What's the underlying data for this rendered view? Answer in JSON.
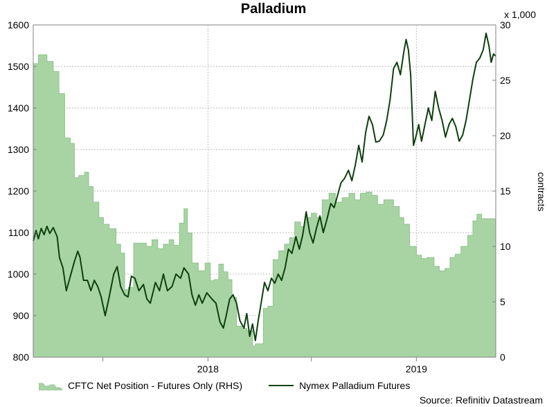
{
  "chart_data": {
    "type": "line",
    "title": "Palladium",
    "ylabel_right": "contracts",
    "right_multiplier": "x 1,000",
    "ylim_left": [
      800,
      1600
    ],
    "ylim_right": [
      0,
      30
    ],
    "yticks_left": [
      800,
      900,
      1000,
      1100,
      1200,
      1300,
      1400,
      1500,
      1600
    ],
    "yticks_right": [
      0,
      5,
      10,
      15,
      20,
      25,
      30
    ],
    "x_range": [
      "2017-03-01",
      "2019-05-20"
    ],
    "x_tick_labels": [
      {
        "date": "2018-01-01",
        "label": "2018"
      },
      {
        "date": "2019-01-01",
        "label": "2019"
      }
    ],
    "x_minor_ticks": [
      "2017-07-01",
      "2018-07-01"
    ],
    "grid": true,
    "legend_position": "bottom",
    "colors": {
      "area_fill": "#a8d4a4",
      "area_edge": "#8ec28a",
      "line": "#0c3f0c",
      "grid": "#bdbdbd"
    },
    "series": [
      {
        "name": "CFTC Net Position - Futures Only (RHS)",
        "type": "area",
        "axis": "right",
        "points": [
          [
            "2017-03-01",
            26.5
          ],
          [
            "2017-03-10",
            27.3
          ],
          [
            "2017-03-20",
            27.3
          ],
          [
            "2017-03-25",
            26.7
          ],
          [
            "2017-04-05",
            25.8
          ],
          [
            "2017-04-15",
            23.8
          ],
          [
            "2017-04-25",
            19.8
          ],
          [
            "2017-05-05",
            19.3
          ],
          [
            "2017-05-12",
            16.2
          ],
          [
            "2017-05-20",
            16.4
          ],
          [
            "2017-05-30",
            16.7
          ],
          [
            "2017-06-06",
            15.4
          ],
          [
            "2017-06-14",
            14.0
          ],
          [
            "2017-06-24",
            12.6
          ],
          [
            "2017-07-02",
            12.0
          ],
          [
            "2017-07-12",
            11.6
          ],
          [
            "2017-07-24",
            10.2
          ],
          [
            "2017-08-01",
            9.4
          ],
          [
            "2017-08-08",
            6.1
          ],
          [
            "2017-08-15",
            6.3
          ],
          [
            "2017-08-24",
            10.3
          ],
          [
            "2017-09-05",
            10.3
          ],
          [
            "2017-09-15",
            10.0
          ],
          [
            "2017-09-25",
            10.6
          ],
          [
            "2017-10-05",
            9.8
          ],
          [
            "2017-10-15",
            10.2
          ],
          [
            "2017-10-25",
            10.6
          ],
          [
            "2017-11-02",
            10.1
          ],
          [
            "2017-11-12",
            12.1
          ],
          [
            "2017-11-20",
            13.4
          ],
          [
            "2017-11-26",
            11.2
          ],
          [
            "2017-12-04",
            8.5
          ],
          [
            "2017-12-15",
            7.8
          ],
          [
            "2017-12-27",
            8.5
          ],
          [
            "2018-01-05",
            6.9
          ],
          [
            "2018-01-12",
            7.0
          ],
          [
            "2018-01-20",
            8.4
          ],
          [
            "2018-01-28",
            7.7
          ],
          [
            "2018-02-05",
            7.0
          ],
          [
            "2018-02-12",
            5.4
          ],
          [
            "2018-02-20",
            2.8
          ],
          [
            "2018-03-01",
            2.6
          ],
          [
            "2018-03-10",
            2.4
          ],
          [
            "2018-03-20",
            1.0
          ],
          [
            "2018-03-25",
            1.2
          ],
          [
            "2018-04-01",
            1.2
          ],
          [
            "2018-04-08",
            4.4
          ],
          [
            "2018-04-16",
            4.6
          ],
          [
            "2018-04-25",
            8.8
          ],
          [
            "2018-05-05",
            9.6
          ],
          [
            "2018-05-15",
            10.2
          ],
          [
            "2018-05-24",
            10.8
          ],
          [
            "2018-06-02",
            12.2
          ],
          [
            "2018-06-12",
            11.8
          ],
          [
            "2018-06-20",
            12.6
          ],
          [
            "2018-07-01",
            13.0
          ],
          [
            "2018-07-10",
            12.6
          ],
          [
            "2018-07-20",
            14.2
          ],
          [
            "2018-08-01",
            14.8
          ],
          [
            "2018-08-12",
            14.0
          ],
          [
            "2018-08-24",
            14.4
          ],
          [
            "2018-09-05",
            14.8
          ],
          [
            "2018-09-15",
            14.2
          ],
          [
            "2018-09-25",
            14.8
          ],
          [
            "2018-10-05",
            14.9
          ],
          [
            "2018-10-15",
            14.6
          ],
          [
            "2018-10-25",
            13.8
          ],
          [
            "2018-11-05",
            14.2
          ],
          [
            "2018-11-15",
            14.2
          ],
          [
            "2018-11-22",
            13.6
          ],
          [
            "2018-12-02",
            12.6
          ],
          [
            "2018-12-10",
            12.0
          ],
          [
            "2018-12-20",
            10.0
          ],
          [
            "2019-01-01",
            9.2
          ],
          [
            "2019-01-10",
            8.9
          ],
          [
            "2019-01-20",
            9.0
          ],
          [
            "2019-02-01",
            8.2
          ],
          [
            "2019-02-10",
            7.8
          ],
          [
            "2019-02-20",
            8.0
          ],
          [
            "2019-03-01",
            9.0
          ],
          [
            "2019-03-10",
            9.3
          ],
          [
            "2019-03-20",
            10.0
          ],
          [
            "2019-04-01",
            11.0
          ],
          [
            "2019-04-10",
            12.3
          ],
          [
            "2019-04-17",
            12.9
          ],
          [
            "2019-04-25",
            12.5
          ],
          [
            "2019-05-10",
            12.5
          ],
          [
            "2019-05-20",
            12.3
          ]
        ]
      },
      {
        "name": "Nymex Palladium Futures",
        "type": "line",
        "axis": "left",
        "points": [
          [
            "2017-03-01",
            1080
          ],
          [
            "2017-03-06",
            1105
          ],
          [
            "2017-03-10",
            1085
          ],
          [
            "2017-03-15",
            1110
          ],
          [
            "2017-03-20",
            1095
          ],
          [
            "2017-03-25",
            1115
          ],
          [
            "2017-03-30",
            1098
          ],
          [
            "2017-04-05",
            1112
          ],
          [
            "2017-04-12",
            1090
          ],
          [
            "2017-04-16",
            1040
          ],
          [
            "2017-04-22",
            1015
          ],
          [
            "2017-04-28",
            960
          ],
          [
            "2017-05-06",
            1000
          ],
          [
            "2017-05-12",
            1030
          ],
          [
            "2017-05-18",
            1055
          ],
          [
            "2017-05-22",
            1040
          ],
          [
            "2017-05-28",
            985
          ],
          [
            "2017-06-04",
            985
          ],
          [
            "2017-06-10",
            960
          ],
          [
            "2017-06-16",
            985
          ],
          [
            "2017-06-22",
            970
          ],
          [
            "2017-06-28",
            945
          ],
          [
            "2017-07-05",
            900
          ],
          [
            "2017-07-12",
            945
          ],
          [
            "2017-07-20",
            1000
          ],
          [
            "2017-07-26",
            1018
          ],
          [
            "2017-08-01",
            970
          ],
          [
            "2017-08-08",
            950
          ],
          [
            "2017-08-14",
            945
          ],
          [
            "2017-08-20",
            995
          ],
          [
            "2017-08-26",
            990
          ],
          [
            "2017-09-02",
            960
          ],
          [
            "2017-09-10",
            975
          ],
          [
            "2017-09-16",
            940
          ],
          [
            "2017-09-22",
            930
          ],
          [
            "2017-10-01",
            980
          ],
          [
            "2017-10-08",
            960
          ],
          [
            "2017-10-15",
            1000
          ],
          [
            "2017-10-22",
            960
          ],
          [
            "2017-10-30",
            970
          ],
          [
            "2017-11-06",
            1000
          ],
          [
            "2017-11-14",
            990
          ],
          [
            "2017-11-20",
            1015
          ],
          [
            "2017-11-28",
            1000
          ],
          [
            "2017-12-04",
            950
          ],
          [
            "2017-12-10",
            925
          ],
          [
            "2017-12-16",
            950
          ],
          [
            "2017-12-22",
            930
          ],
          [
            "2017-12-30",
            955
          ],
          [
            "2018-01-08",
            940
          ],
          [
            "2018-01-15",
            930
          ],
          [
            "2018-01-22",
            885
          ],
          [
            "2018-01-28",
            870
          ],
          [
            "2018-02-02",
            900
          ],
          [
            "2018-02-08",
            940
          ],
          [
            "2018-02-14",
            950
          ],
          [
            "2018-02-20",
            930
          ],
          [
            "2018-02-26",
            888
          ],
          [
            "2018-03-05",
            870
          ],
          [
            "2018-03-10",
            905
          ],
          [
            "2018-03-15",
            850
          ],
          [
            "2018-03-20",
            880
          ],
          [
            "2018-03-25",
            840
          ],
          [
            "2018-03-30",
            888
          ],
          [
            "2018-04-04",
            930
          ],
          [
            "2018-04-10",
            980
          ],
          [
            "2018-04-16",
            960
          ],
          [
            "2018-04-22",
            990
          ],
          [
            "2018-04-28",
            978
          ],
          [
            "2018-05-04",
            1000
          ],
          [
            "2018-05-10",
            985
          ],
          [
            "2018-05-16",
            1015
          ],
          [
            "2018-05-22",
            1060
          ],
          [
            "2018-05-28",
            1050
          ],
          [
            "2018-06-04",
            1090
          ],
          [
            "2018-06-10",
            1060
          ],
          [
            "2018-06-16",
            1095
          ],
          [
            "2018-06-22",
            1150
          ],
          [
            "2018-06-28",
            1100
          ],
          [
            "2018-07-04",
            1075
          ],
          [
            "2018-07-10",
            1110
          ],
          [
            "2018-07-16",
            1140
          ],
          [
            "2018-07-22",
            1100
          ],
          [
            "2018-07-28",
            1130
          ],
          [
            "2018-08-04",
            1170
          ],
          [
            "2018-08-10",
            1160
          ],
          [
            "2018-08-16",
            1190
          ],
          [
            "2018-08-22",
            1220
          ],
          [
            "2018-08-28",
            1230
          ],
          [
            "2018-09-04",
            1250
          ],
          [
            "2018-09-10",
            1225
          ],
          [
            "2018-09-16",
            1262
          ],
          [
            "2018-09-22",
            1310
          ],
          [
            "2018-09-28",
            1270
          ],
          [
            "2018-10-04",
            1340
          ],
          [
            "2018-10-10",
            1380
          ],
          [
            "2018-10-16",
            1360
          ],
          [
            "2018-10-22",
            1318
          ],
          [
            "2018-10-28",
            1320
          ],
          [
            "2018-11-04",
            1335
          ],
          [
            "2018-11-10",
            1370
          ],
          [
            "2018-11-16",
            1420
          ],
          [
            "2018-11-22",
            1495
          ],
          [
            "2018-11-28",
            1510
          ],
          [
            "2018-12-04",
            1480
          ],
          [
            "2018-12-10",
            1535
          ],
          [
            "2018-12-14",
            1565
          ],
          [
            "2018-12-18",
            1540
          ],
          [
            "2018-12-22",
            1480
          ],
          [
            "2018-12-27",
            1310
          ],
          [
            "2018-12-31",
            1330
          ],
          [
            "2019-01-05",
            1360
          ],
          [
            "2019-01-10",
            1320
          ],
          [
            "2019-01-16",
            1360
          ],
          [
            "2019-01-22",
            1400
          ],
          [
            "2019-01-28",
            1370
          ],
          [
            "2019-02-03",
            1440
          ],
          [
            "2019-02-09",
            1400
          ],
          [
            "2019-02-15",
            1370
          ],
          [
            "2019-02-21",
            1330
          ],
          [
            "2019-02-27",
            1360
          ],
          [
            "2019-03-05",
            1375
          ],
          [
            "2019-03-11",
            1355
          ],
          [
            "2019-03-17",
            1320
          ],
          [
            "2019-03-23",
            1335
          ],
          [
            "2019-03-29",
            1370
          ],
          [
            "2019-04-04",
            1420
          ],
          [
            "2019-04-10",
            1470
          ],
          [
            "2019-04-16",
            1510
          ],
          [
            "2019-04-22",
            1520
          ],
          [
            "2019-04-28",
            1540
          ],
          [
            "2019-05-03",
            1580
          ],
          [
            "2019-05-08",
            1550
          ],
          [
            "2019-05-12",
            1510
          ],
          [
            "2019-05-16",
            1530
          ],
          [
            "2019-05-20",
            1525
          ]
        ]
      }
    ]
  },
  "source": "Source: Refinitiv Datastream"
}
